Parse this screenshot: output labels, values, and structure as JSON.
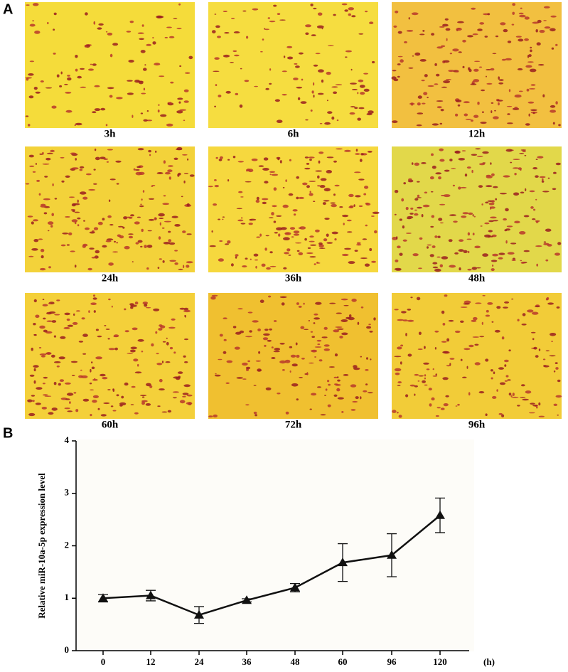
{
  "panel_a": {
    "label": "A",
    "captions": [
      "3h",
      "6h",
      "12h",
      "24h",
      "36h",
      "48h",
      "60h",
      "72h",
      "96h"
    ]
  },
  "panel_b": {
    "label": "B"
  },
  "chart_data": {
    "type": "line",
    "y_label": "Relative miR-10a-5p expression level",
    "x_unit": "(h)",
    "categories": [
      "0",
      "12",
      "24",
      "36",
      "48",
      "60",
      "96",
      "120"
    ],
    "values": [
      1.0,
      1.05,
      0.68,
      0.96,
      1.2,
      1.68,
      1.82,
      2.58
    ],
    "errors": [
      0.07,
      0.1,
      0.16,
      0.03,
      0.08,
      0.36,
      0.41,
      0.33
    ],
    "color": "#111111",
    "ylim": [
      0,
      4
    ],
    "yticks": [
      0,
      1,
      2,
      3,
      4
    ]
  }
}
